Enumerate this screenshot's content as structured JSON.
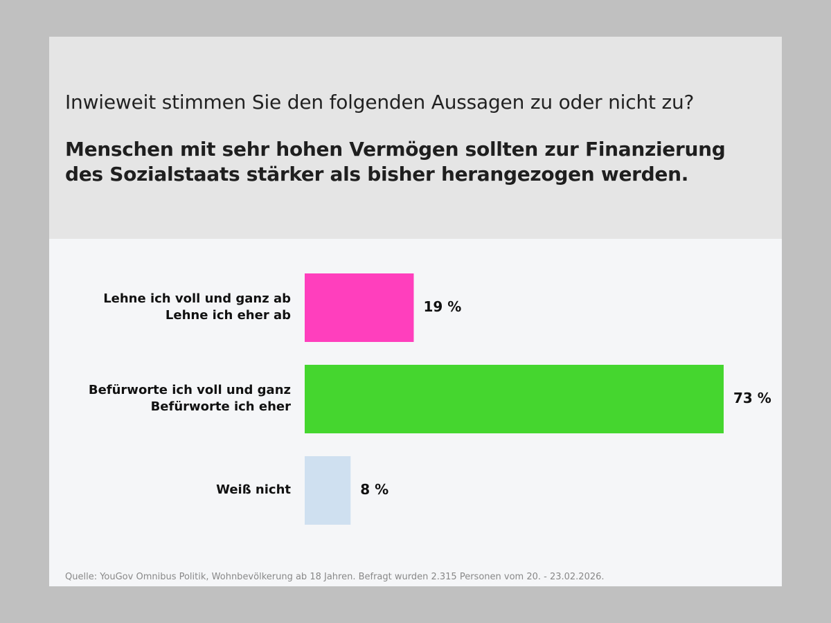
{
  "header": {
    "question": "Inwieweit stimmen Sie den folgenden Aussagen zu oder nicht zu?",
    "statement": "Menschen mit sehr hohen Vermögen sollten zur Finanzierung des Sozialstaats stärker als bisher herangezogen werden."
  },
  "chart_data": {
    "type": "bar",
    "orientation": "horizontal",
    "title": "Inwieweit stimmen Sie den folgenden Aussagen zu oder nicht zu?",
    "subtitle": "Menschen mit sehr hohen Vermögen sollten zur Finanzierung des Sozialstaats stärker als bisher herangezogen werden.",
    "categories": [
      [
        "Lehne ich voll und ganz ab",
        "Lehne ich eher ab"
      ],
      [
        "Befürworte ich voll und ganz",
        "Befürworte ich eher"
      ],
      [
        "Weiß nicht"
      ]
    ],
    "values": [
      19,
      73,
      8
    ],
    "value_labels": [
      "19 %",
      "73 %",
      "8 %"
    ],
    "colors": [
      "#ff3fbd",
      "#45d62f",
      "#cfe0f0"
    ],
    "xlim": [
      0,
      73
    ],
    "xlabel": "",
    "ylabel": "",
    "grid": false
  },
  "footer": {
    "source": "Quelle: YouGov Omnibus Politik, Wohnbevölkerung ab 18 Jahren. Befragt wurden 2.315 Personen vom 20. - 23.02.2026."
  }
}
